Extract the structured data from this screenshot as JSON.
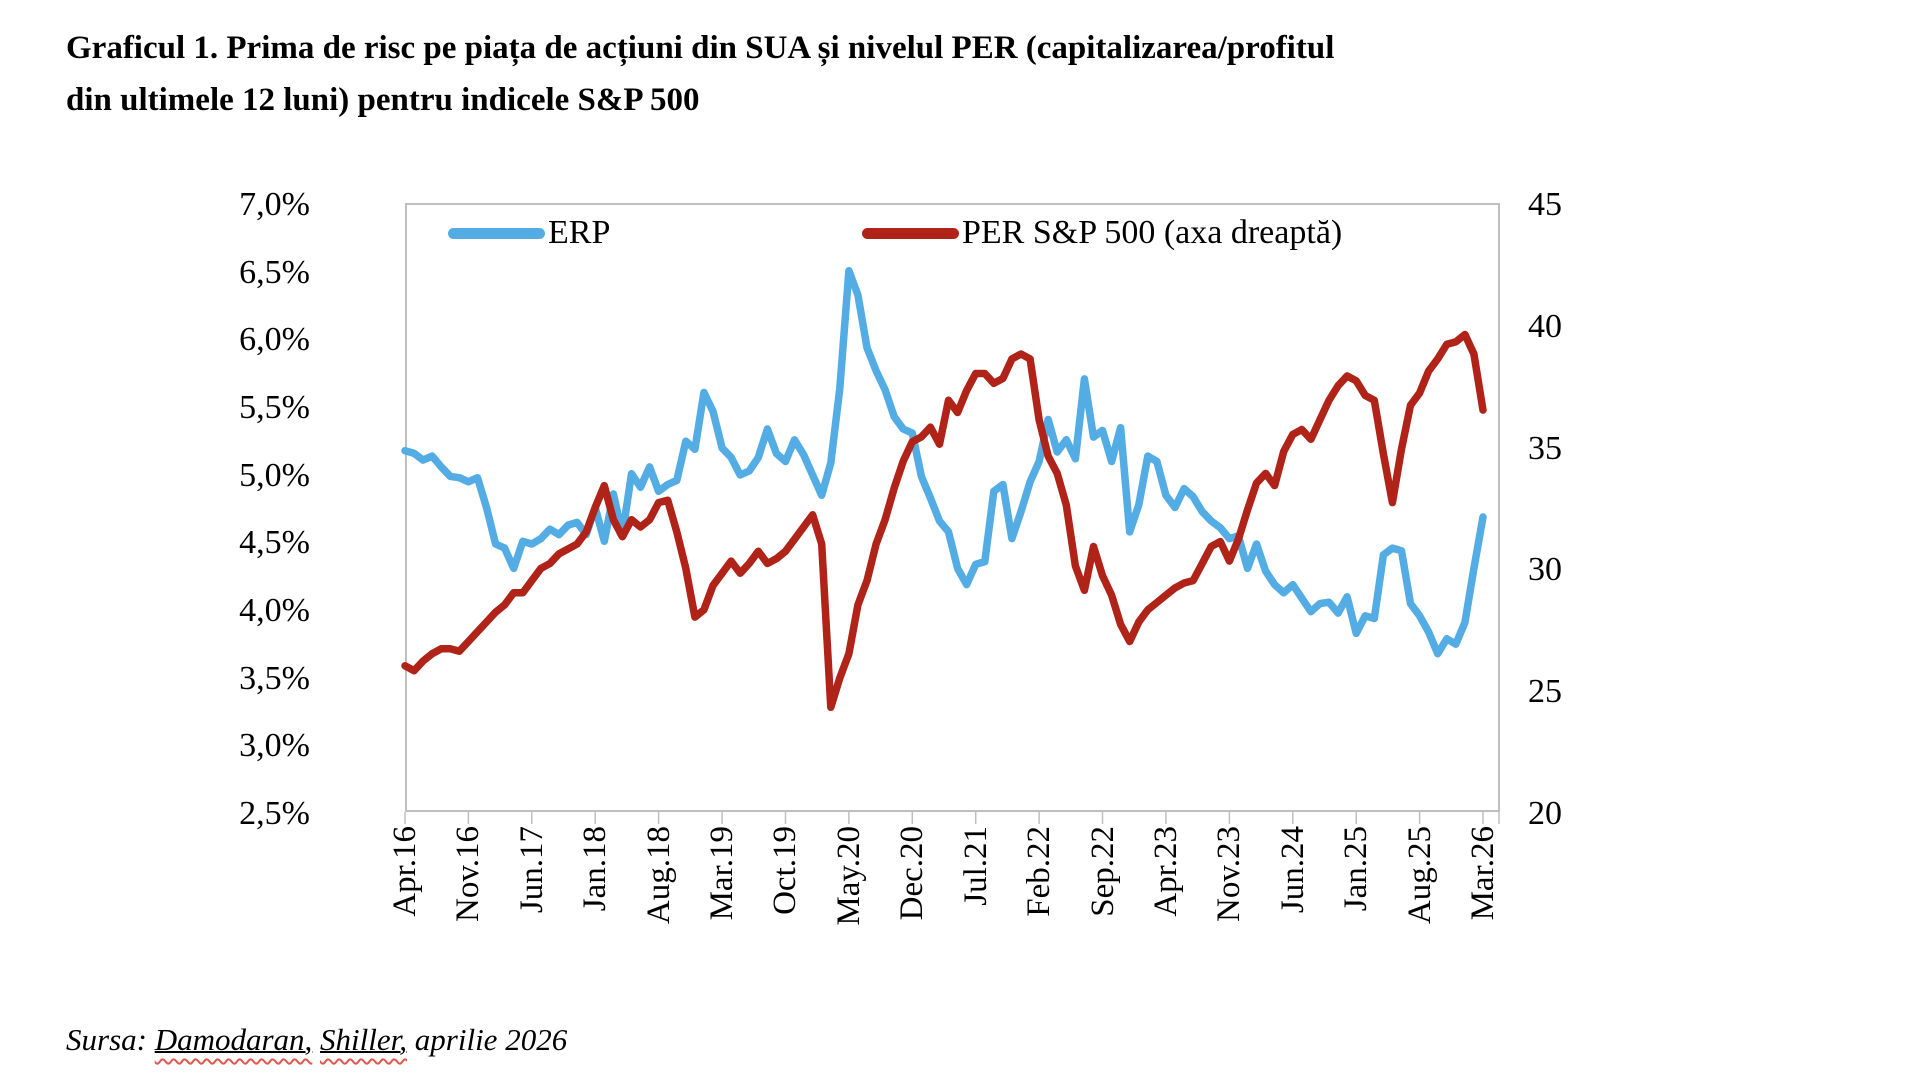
{
  "title": {
    "line1": "Graficul 1. Prima de risc pe piața de acțiuni din SUA și nivelul PER (capitalizarea/profitul",
    "line2": "din ultimele 12 luni) pentru indicele S&P 500"
  },
  "legend": {
    "erp_label": "ERP",
    "per_label": "PER S&P 500 (axa dreaptă)"
  },
  "source": {
    "prefix": "Sursa: ",
    "ref1": "Damodaran,",
    "ref2": "Shiller,",
    "suffix": " aprilie 2026"
  },
  "colors": {
    "erp_line": "#53ace3",
    "per_line": "#b02318",
    "axis_gray": "#bfbfbf",
    "text": "#000000",
    "spellcheck_wavy": "#e2574d"
  },
  "chart_data": {
    "type": "line",
    "frequency": "monthly",
    "x_start": "Apr.16",
    "x_end": "Mar.26",
    "x_tick_labels": [
      "Apr.16",
      "Nov.16",
      "Jun.17",
      "Jan.18",
      "Aug.18",
      "Mar.19",
      "Oct.19",
      "May.20",
      "Dec.20",
      "Jul.21",
      "Feb.22",
      "Sep.22",
      "Apr.23",
      "Nov.23",
      "Jun.24",
      "Jan.25",
      "Aug.25",
      "Mar.26"
    ],
    "left_axis": {
      "tick_labels": [
        "7,0%",
        "6,5%",
        "6,0%",
        "5,5%",
        "5,0%",
        "4,5%",
        "4,0%",
        "3,5%",
        "3,0%",
        "2,5%"
      ],
      "min": 2.5,
      "max": 7.0,
      "unit": "%"
    },
    "right_axis": {
      "tick_labels": [
        "45",
        "40",
        "35",
        "30",
        "25",
        "20"
      ],
      "min": 20,
      "max": 45
    },
    "grid": "off",
    "legend_position": "top-inside",
    "series": [
      {
        "name": "ERP",
        "axis": "left",
        "color": "#53ace3",
        "values": [
          5.17,
          5.15,
          5.1,
          5.13,
          5.05,
          4.98,
          4.97,
          4.94,
          4.97,
          4.75,
          4.48,
          4.45,
          4.3,
          4.5,
          4.48,
          4.52,
          4.59,
          4.55,
          4.62,
          4.64,
          4.55,
          4.75,
          4.5,
          4.85,
          4.55,
          5.0,
          4.9,
          5.05,
          4.87,
          4.92,
          4.95,
          5.24,
          5.18,
          5.6,
          5.46,
          5.19,
          5.12,
          4.99,
          5.02,
          5.12,
          5.33,
          5.15,
          5.09,
          5.25,
          5.14,
          4.99,
          4.84,
          5.08,
          5.63,
          6.5,
          6.32,
          5.93,
          5.76,
          5.62,
          5.42,
          5.33,
          5.3,
          4.98,
          4.82,
          4.65,
          4.57,
          4.3,
          4.18,
          4.33,
          4.35,
          4.87,
          4.92,
          4.52,
          4.72,
          4.94,
          5.09,
          5.4,
          5.16,
          5.25,
          5.11,
          5.7,
          5.27,
          5.32,
          5.09,
          5.34,
          4.57,
          4.77,
          5.13,
          5.09,
          4.84,
          4.75,
          4.89,
          4.83,
          4.72,
          4.65,
          4.6,
          4.52,
          4.54,
          4.3,
          4.48,
          4.28,
          4.18,
          4.12,
          4.18,
          4.08,
          3.98,
          4.04,
          4.05,
          3.97,
          4.09,
          3.82,
          3.95,
          3.93,
          4.4,
          4.45,
          4.43,
          4.04,
          3.95,
          3.83,
          3.67,
          3.78,
          3.74,
          3.9,
          4.3,
          4.68
        ]
      },
      {
        "name": "PER S&P 500 (axa dreaptă)",
        "axis": "right",
        "color": "#b02318",
        "values": [
          26.0,
          25.8,
          26.2,
          26.5,
          26.7,
          26.7,
          26.6,
          27.0,
          27.4,
          27.8,
          28.2,
          28.5,
          29.0,
          29.0,
          29.5,
          30.0,
          30.2,
          30.6,
          30.8,
          31.0,
          31.5,
          32.5,
          33.4,
          32.0,
          31.3,
          32.0,
          31.7,
          32.0,
          32.7,
          32.8,
          31.5,
          30.0,
          28.0,
          28.3,
          29.3,
          29.8,
          30.3,
          29.8,
          30.2,
          30.7,
          30.2,
          30.4,
          30.7,
          31.2,
          31.7,
          32.2,
          31.0,
          24.3,
          25.5,
          26.5,
          28.5,
          29.5,
          31.0,
          32.0,
          33.3,
          34.4,
          35.2,
          35.4,
          35.8,
          35.1,
          36.9,
          36.4,
          37.3,
          38.0,
          38.0,
          37.6,
          37.8,
          38.6,
          38.8,
          38.6,
          36.1,
          34.6,
          33.9,
          32.6,
          30.1,
          29.1,
          30.9,
          29.7,
          28.9,
          27.7,
          27.0,
          27.8,
          28.3,
          28.6,
          28.9,
          29.2,
          29.4,
          29.5,
          30.2,
          30.9,
          31.1,
          30.3,
          31.2,
          32.4,
          33.5,
          33.9,
          33.4,
          34.8,
          35.5,
          35.7,
          35.3,
          36.1,
          36.9,
          37.5,
          37.9,
          37.7,
          37.1,
          36.9,
          34.7,
          32.7,
          34.9,
          36.7,
          37.2,
          38.1,
          38.6,
          39.2,
          39.3,
          39.6,
          38.8,
          36.5
        ]
      }
    ]
  }
}
